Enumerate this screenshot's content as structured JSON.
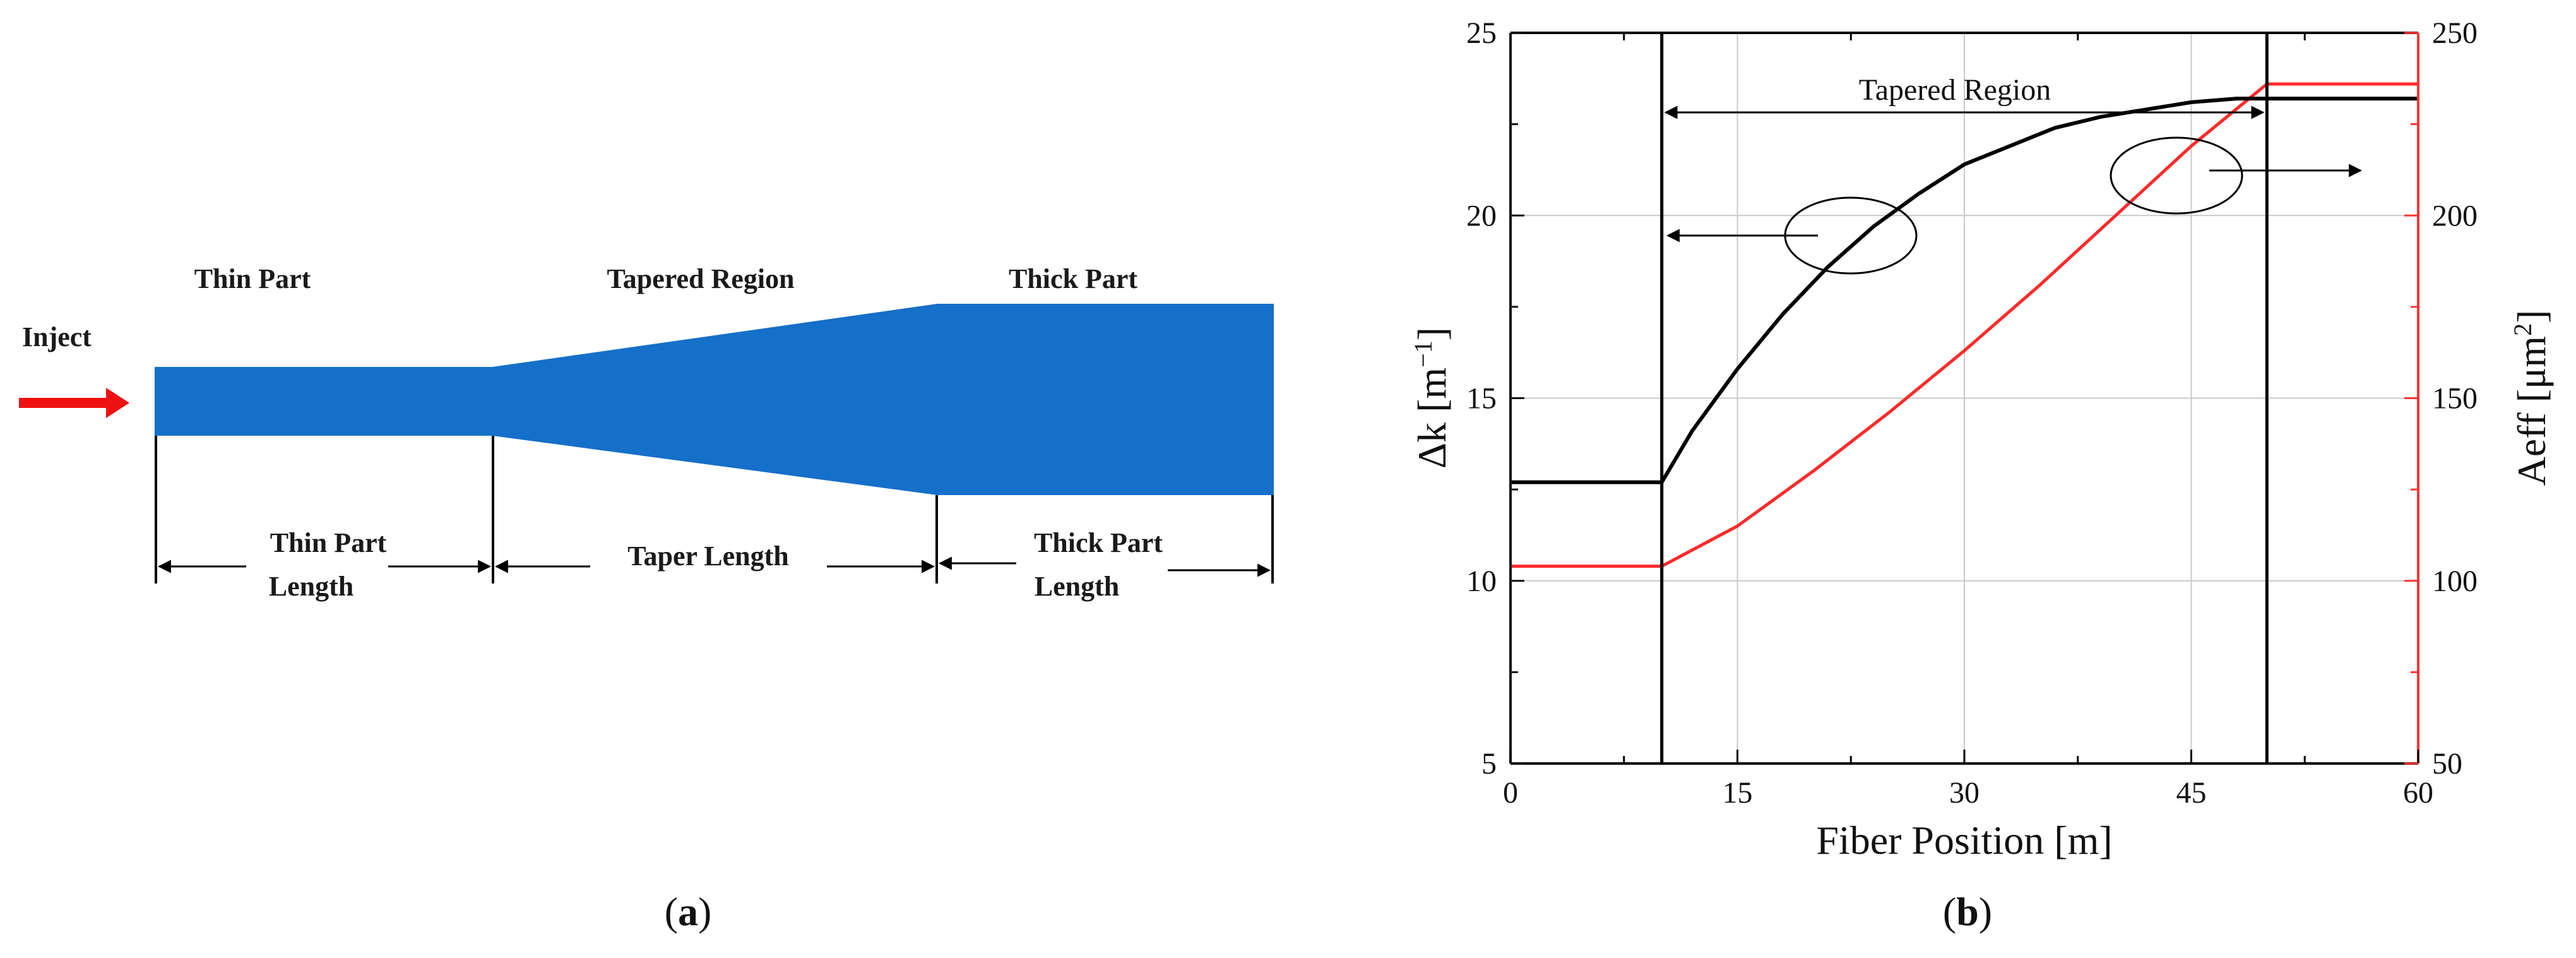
{
  "panel_a": {
    "inject_label": "Inject",
    "thin_part_label": "Thin Part",
    "tapered_region_label": "Tapered Region",
    "thick_part_label": "Thick Part",
    "thin_length_line1": "Thin Part",
    "thin_length_line2": "Length",
    "taper_length_label": "Taper Length",
    "thick_length_line1": "Thick Part",
    "thick_length_line2": "Length",
    "fiber_color": "#1570c9",
    "arrow_color": "#ee1111",
    "caption_open": "(",
    "caption_letter": "a",
    "caption_close": ")"
  },
  "panel_b": {
    "caption_open": "(",
    "caption_letter": "b",
    "caption_close": ")"
  },
  "chart_data": {
    "type": "line",
    "xlabel": "Fiber Position [m]",
    "ylabel_left_main": "Δk [m",
    "ylabel_left_sup": "−1",
    "ylabel_left_close": "]",
    "ylabel_right_main": "Aeff [μm",
    "ylabel_right_sup": "2",
    "ylabel_right_close": "]",
    "xlim": [
      0,
      60
    ],
    "ylim_left": [
      5,
      25
    ],
    "ylim_right": [
      50,
      250
    ],
    "x_ticks": [
      0,
      15,
      30,
      45,
      60
    ],
    "y_ticks_left": [
      5,
      10,
      15,
      20,
      25
    ],
    "y_ticks_right": [
      50,
      100,
      150,
      200,
      250
    ],
    "grid": true,
    "annotation": "Tapered Region",
    "tapered_region_bounds": [
      10,
      50
    ],
    "left_axis_color": "#111111",
    "right_axis_color": "#ff3333",
    "series": [
      {
        "axis": "left",
        "color": "#000000",
        "x": [
          0,
          10,
          12,
          15,
          18,
          21,
          24,
          27,
          30,
          33,
          36,
          39,
          42,
          45,
          48,
          50,
          60
        ],
        "y": [
          12.7,
          12.7,
          14.1,
          15.8,
          17.3,
          18.6,
          19.7,
          20.6,
          21.4,
          21.9,
          22.4,
          22.7,
          22.9,
          23.1,
          23.2,
          23.2,
          23.2
        ]
      },
      {
        "axis": "right",
        "color": "#ff2a2a",
        "x": [
          0,
          10,
          15,
          20,
          25,
          30,
          35,
          40,
          45,
          50,
          60
        ],
        "y": [
          104,
          104,
          115,
          130,
          146,
          163,
          181,
          200,
          219,
          236,
          236
        ]
      }
    ]
  }
}
